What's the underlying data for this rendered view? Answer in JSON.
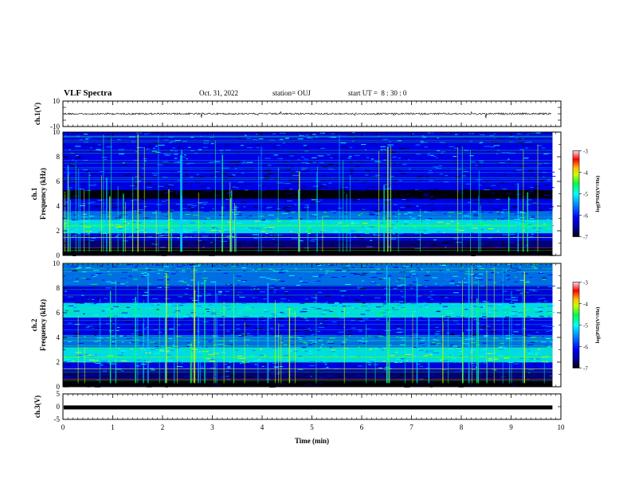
{
  "header": {
    "title": "VLF Spectra",
    "date": "Oct. 31, 2022",
    "station": "station= OUJ",
    "start_ut": "start UT =  8 : 30 : 0"
  },
  "chart_data": [
    {
      "type": "line",
      "name": "ch1-waveform",
      "ylabel": "ch.1(V)",
      "ylim": [
        -10,
        10
      ],
      "y_ticks": [
        "10",
        "-10"
      ],
      "x_range": [
        0,
        10
      ],
      "baseline_value": 0,
      "description_values": {
        "mean_V": 0
      }
    },
    {
      "type": "heatmap",
      "name": "ch1-spectrogram",
      "ylabel_line1": "ch.1",
      "ylabel_line2": "Frequency (kHz)",
      "ylim": [
        0,
        10
      ],
      "y_ticks": [
        "0",
        "2",
        "4",
        "6",
        "8",
        "10"
      ],
      "x_range": [
        0,
        9.83
      ],
      "colorbar": {
        "label": "log(PSD)(V²/Hz)",
        "range": [
          -7,
          -3
        ],
        "ticks": [
          "-3",
          "-4",
          "-5",
          "-6",
          "-7"
        ]
      },
      "bands_khz": [
        {
          "from": 0.0,
          "to": 0.6,
          "level": -6.9
        },
        {
          "from": 0.6,
          "to": 1.2,
          "level": -6.3
        },
        {
          "from": 1.2,
          "to": 1.8,
          "level": -5.8
        },
        {
          "from": 1.8,
          "to": 2.9,
          "level": -4.8
        },
        {
          "from": 2.9,
          "to": 3.6,
          "level": -5.4
        },
        {
          "from": 3.6,
          "to": 4.6,
          "level": -6.0
        },
        {
          "from": 4.6,
          "to": 5.3,
          "level": -6.7
        },
        {
          "from": 5.3,
          "to": 7.5,
          "level": -6.1
        },
        {
          "from": 7.5,
          "to": 10.0,
          "level": -5.8
        }
      ]
    },
    {
      "type": "heatmap",
      "name": "ch2-spectrogram",
      "ylabel_line1": "ch.2",
      "ylabel_line2": "Frequency (kHz)",
      "ylim": [
        0,
        10
      ],
      "y_ticks": [
        "0",
        "2",
        "4",
        "6",
        "8",
        "10"
      ],
      "x_range": [
        0,
        9.83
      ],
      "colorbar": {
        "label": "log(PSD)(V²/Hz)",
        "range": [
          -7,
          -3
        ],
        "ticks": [
          "-3",
          "-4",
          "-5",
          "-6",
          "-7"
        ]
      },
      "bands_khz": [
        {
          "from": 0.0,
          "to": 0.6,
          "level": -6.9
        },
        {
          "from": 0.6,
          "to": 1.3,
          "level": -6.3
        },
        {
          "from": 1.3,
          "to": 2.0,
          "level": -5.7
        },
        {
          "from": 2.0,
          "to": 3.2,
          "level": -4.8
        },
        {
          "from": 3.2,
          "to": 4.2,
          "level": -5.3
        },
        {
          "from": 4.2,
          "to": 5.6,
          "level": -6.0
        },
        {
          "from": 5.6,
          "to": 6.8,
          "level": -5.2
        },
        {
          "from": 6.8,
          "to": 8.2,
          "level": -5.9
        },
        {
          "from": 8.2,
          "to": 10.0,
          "level": -5.4
        }
      ]
    },
    {
      "type": "line",
      "name": "ch3-waveform",
      "ylabel": "ch.3(V)",
      "ylim": [
        -5,
        5
      ],
      "y_ticks": [
        "5",
        "0",
        "-5"
      ],
      "x_range": [
        0,
        9.83
      ],
      "baseline_value": 0
    }
  ],
  "x_axis": {
    "label": "Time (min)",
    "ticks": [
      "0",
      "1",
      "2",
      "3",
      "4",
      "5",
      "6",
      "7",
      "8",
      "9",
      "10"
    ],
    "range": [
      0,
      10
    ]
  },
  "colors": {
    "bg_dark": "#000a3c",
    "colormap": [
      "#000000",
      "#00007f",
      "#0000ff",
      "#0080ff",
      "#00ffff",
      "#00ff40",
      "#c8ff00",
      "#ffc800",
      "#ff0000",
      "#ffffff"
    ]
  }
}
